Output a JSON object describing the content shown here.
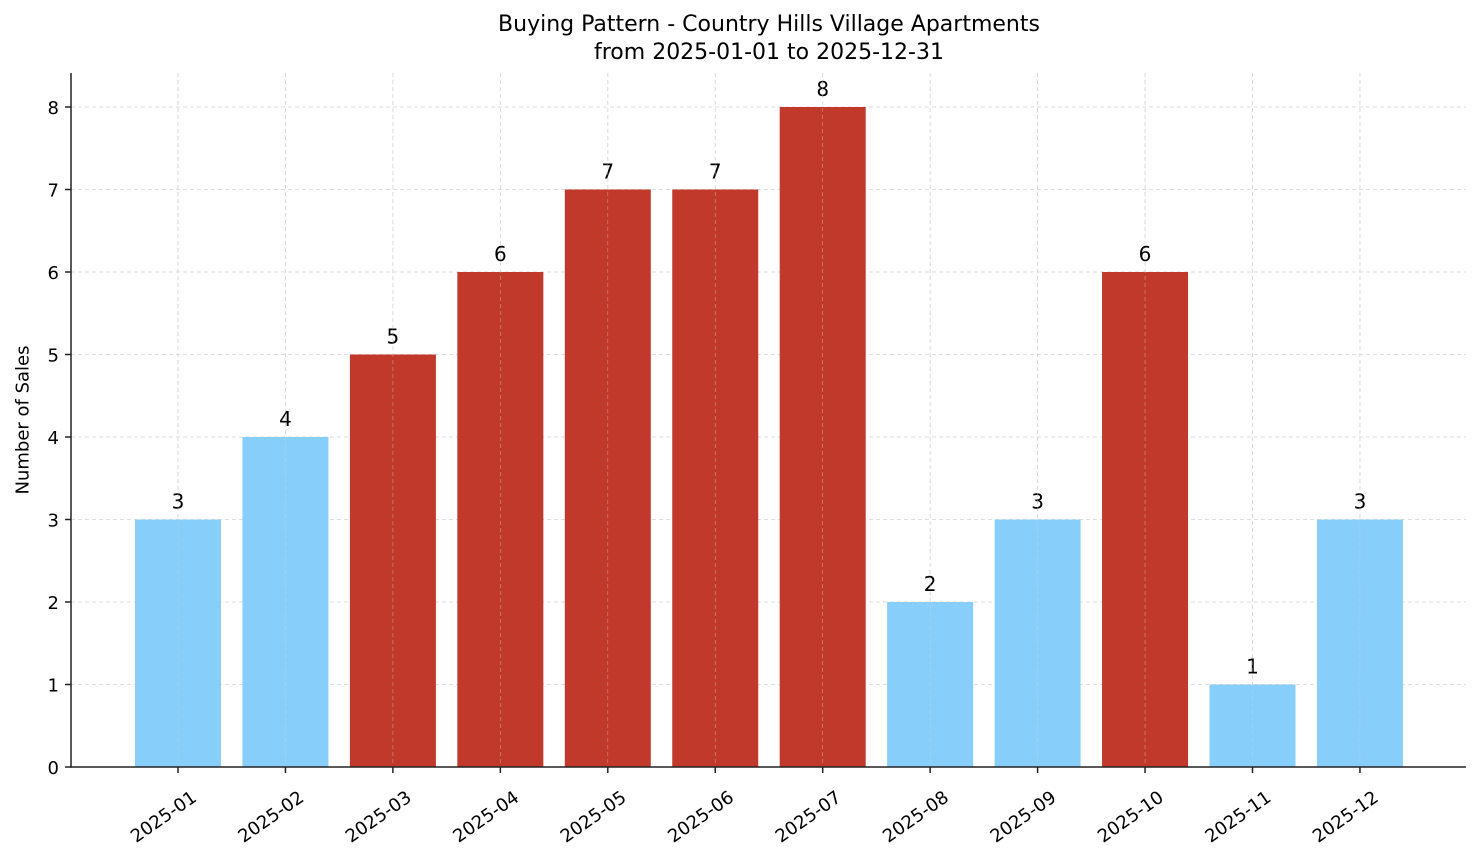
{
  "chart_data": {
    "type": "bar",
    "title": "Buying Pattern - Country Hills Village Apartments",
    "subtitle": "from 2025-01-01 to 2025-12-31",
    "xlabel": "",
    "ylabel": "Number of Sales",
    "categories": [
      "2025-01",
      "2025-02",
      "2025-03",
      "2025-04",
      "2025-05",
      "2025-06",
      "2025-07",
      "2025-08",
      "2025-09",
      "2025-10",
      "2025-11",
      "2025-12"
    ],
    "values": [
      3,
      4,
      5,
      6,
      7,
      7,
      8,
      2,
      3,
      6,
      1,
      3
    ],
    "bar_colors": [
      "#87cefa",
      "#87cefa",
      "#c0392b",
      "#c0392b",
      "#c0392b",
      "#c0392b",
      "#c0392b",
      "#87cefa",
      "#87cefa",
      "#c0392b",
      "#87cefa",
      "#87cefa"
    ],
    "data_labels": [
      "3",
      "4",
      "5",
      "6",
      "7",
      "7",
      "8",
      "2",
      "3",
      "6",
      "1",
      "3"
    ],
    "yticks": [
      0,
      1,
      2,
      3,
      4,
      5,
      6,
      7,
      8
    ],
    "ylim": [
      0,
      8.4
    ],
    "grid": true,
    "legend": null,
    "x_tick_rotation": 35
  },
  "colors": {
    "high": "#c0392b",
    "low": "#87cefa",
    "grid": "#d3d3d3",
    "axis": "#222222"
  }
}
